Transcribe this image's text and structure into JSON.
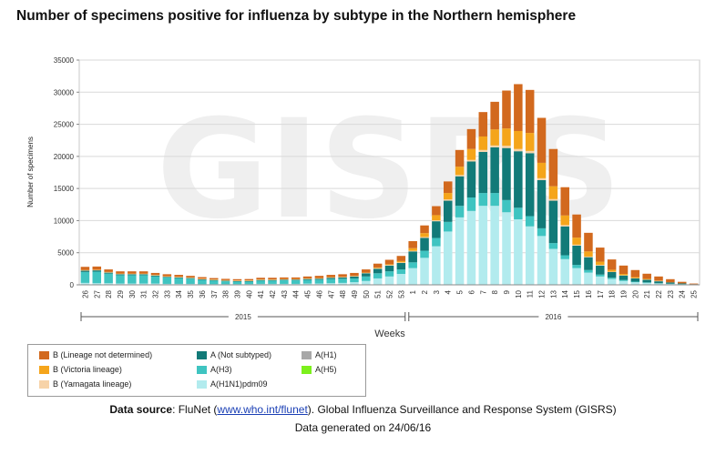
{
  "title": "Number of specimens positive for influenza by subtype in the Northern hemisphere",
  "watermark": "GISRS",
  "source": {
    "label": "Data source",
    "pre": ": FluNet (",
    "link": "www.who.int/flunet",
    "post": "). Global Influenza Surveillance and Response System (GISRS)",
    "generated": "Data generated on 24/06/16"
  },
  "legend": [
    {
      "key": "b_nd",
      "label": "B (Lineage not determined)",
      "color": "#d2691e"
    },
    {
      "key": "b_vic",
      "label": "B (Victoria lineage)",
      "color": "#f5a51b"
    },
    {
      "key": "b_yam",
      "label": "B (Yamagata lineage)",
      "color": "#f7d3a8"
    },
    {
      "key": "a_ns",
      "label": "A (Not subtyped)",
      "color": "#127a78"
    },
    {
      "key": "a_h3",
      "label": "A(H3)",
      "color": "#3fc4c1"
    },
    {
      "key": "a_h1pdm",
      "label": "A(H1N1)pdm09",
      "color": "#b2ebee"
    },
    {
      "key": "a_h1",
      "label": "A(H1)",
      "color": "#a8a8a8"
    },
    {
      "key": "a_h5",
      "label": "A(H5)",
      "color": "#7cf01c"
    }
  ],
  "chart_data": {
    "type": "bar",
    "stacked": true,
    "title": "Number of specimens positive for influenza by subtype in the Northern hemisphere",
    "xlabel": "Weeks",
    "ylabel": "Number of specimens",
    "ylim": [
      0,
      35000
    ],
    "yticks": [
      0,
      5000,
      10000,
      15000,
      20000,
      25000,
      30000,
      35000
    ],
    "categories": [
      "26",
      "27",
      "28",
      "29",
      "30",
      "31",
      "32",
      "33",
      "34",
      "35",
      "36",
      "37",
      "38",
      "39",
      "40",
      "41",
      "42",
      "43",
      "44",
      "45",
      "46",
      "47",
      "48",
      "49",
      "50",
      "51",
      "52",
      "53",
      "1",
      "2",
      "3",
      "4",
      "5",
      "6",
      "7",
      "8",
      "9",
      "10",
      "11",
      "12",
      "13",
      "14",
      "15",
      "16",
      "17",
      "18",
      "19",
      "20",
      "21",
      "22",
      "23",
      "24",
      "25"
    ],
    "year_groups": [
      {
        "label": "2015",
        "from": "26",
        "to": "53"
      },
      {
        "label": "2016",
        "from": "1",
        "to": "25"
      }
    ],
    "series": [
      {
        "name": "A(H1N1)pdm09",
        "key": "a_h1pdm",
        "values": [
          300,
          250,
          250,
          200,
          200,
          200,
          200,
          150,
          150,
          150,
          100,
          100,
          100,
          100,
          100,
          150,
          150,
          150,
          150,
          200,
          200,
          250,
          300,
          400,
          600,
          1000,
          1300,
          1700,
          2600,
          4200,
          6000,
          8300,
          10500,
          11500,
          12300,
          12300,
          11300,
          10200,
          9100,
          7600,
          5600,
          4000,
          2600,
          1900,
          1300,
          900,
          600,
          400,
          300,
          200,
          150,
          100,
          50
        ]
      },
      {
        "name": "A(H3)",
        "key": "a_h3",
        "values": [
          1700,
          1800,
          1500,
          1300,
          1300,
          1300,
          1100,
          1000,
          900,
          800,
          650,
          550,
          450,
          400,
          400,
          500,
          500,
          550,
          550,
          550,
          600,
          650,
          650,
          600,
          700,
          800,
          800,
          700,
          900,
          1100,
          1300,
          1500,
          1800,
          2100,
          2000,
          2000,
          1900,
          1800,
          1600,
          1200,
          900,
          600,
          500,
          400,
          300,
          200,
          150,
          100,
          80,
          50,
          30,
          20,
          0
        ]
      },
      {
        "name": "A (Not subtyped)",
        "key": "a_ns",
        "values": [
          200,
          200,
          150,
          150,
          150,
          150,
          150,
          100,
          100,
          100,
          100,
          100,
          80,
          80,
          100,
          100,
          100,
          100,
          100,
          150,
          150,
          200,
          200,
          300,
          500,
          700,
          900,
          1000,
          1700,
          2000,
          2600,
          3300,
          4600,
          5600,
          6400,
          7100,
          8100,
          8800,
          9800,
          7500,
          6600,
          4500,
          3000,
          2000,
          1400,
          900,
          700,
          500,
          400,
          300,
          200,
          100,
          50
        ]
      },
      {
        "name": "B (Yamagata lineage)",
        "key": "b_yam",
        "values": [
          50,
          50,
          50,
          50,
          50,
          50,
          50,
          50,
          50,
          50,
          50,
          50,
          50,
          50,
          50,
          50,
          50,
          50,
          50,
          50,
          50,
          50,
          50,
          50,
          50,
          100,
          100,
          100,
          100,
          150,
          150,
          200,
          200,
          250,
          300,
          300,
          350,
          350,
          350,
          300,
          250,
          200,
          150,
          100,
          100,
          50,
          50,
          50,
          50,
          50,
          0,
          0,
          0
        ]
      },
      {
        "name": "B (Victoria lineage)",
        "key": "b_vic",
        "values": [
          50,
          50,
          50,
          50,
          50,
          50,
          50,
          50,
          50,
          50,
          50,
          50,
          50,
          50,
          50,
          50,
          50,
          50,
          50,
          50,
          50,
          50,
          50,
          50,
          50,
          100,
          100,
          200,
          400,
          600,
          800,
          1000,
          1300,
          1700,
          2100,
          2500,
          2700,
          2800,
          2800,
          2400,
          2000,
          1500,
          1100,
          800,
          500,
          300,
          200,
          150,
          100,
          50,
          0,
          0,
          0
        ]
      },
      {
        "name": "B (Lineage not determined)",
        "key": "b_nd",
        "values": [
          500,
          500,
          400,
          350,
          350,
          350,
          300,
          300,
          300,
          250,
          250,
          200,
          200,
          200,
          200,
          250,
          250,
          250,
          250,
          300,
          350,
          350,
          400,
          450,
          500,
          600,
          700,
          800,
          1100,
          1200,
          1400,
          1800,
          2600,
          3100,
          3800,
          4300,
          5900,
          7300,
          6700,
          7000,
          5800,
          4400,
          3600,
          2900,
          2200,
          1600,
          1300,
          1100,
          800,
          650,
          500,
          250,
          100
        ]
      },
      {
        "name": "A(H1)",
        "key": "a_h1",
        "values": [
          0,
          0,
          0,
          0,
          0,
          0,
          0,
          0,
          0,
          0,
          0,
          0,
          0,
          0,
          0,
          0,
          0,
          0,
          0,
          0,
          0,
          0,
          0,
          0,
          0,
          0,
          0,
          0,
          0,
          0,
          0,
          0,
          0,
          0,
          0,
          0,
          0,
          0,
          0,
          0,
          0,
          0,
          0,
          0,
          0,
          0,
          0,
          0,
          0,
          0,
          0,
          0,
          0
        ]
      },
      {
        "name": "A(H5)",
        "key": "a_h5",
        "values": [
          0,
          0,
          0,
          0,
          0,
          0,
          0,
          0,
          0,
          0,
          0,
          0,
          0,
          0,
          0,
          0,
          0,
          0,
          0,
          0,
          0,
          0,
          0,
          0,
          0,
          0,
          0,
          0,
          0,
          0,
          0,
          0,
          0,
          0,
          0,
          0,
          0,
          0,
          0,
          0,
          0,
          0,
          0,
          0,
          0,
          0,
          0,
          0,
          0,
          0,
          0,
          0,
          0
        ]
      }
    ],
    "legend_position": "bottom-left",
    "grid": true
  }
}
